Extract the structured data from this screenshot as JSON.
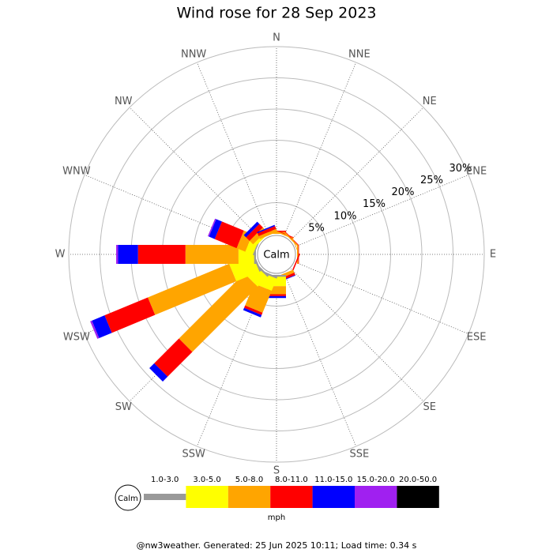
{
  "chart_data": {
    "type": "windrose",
    "title": "Wind rose for 28 Sep 2023",
    "categories": [
      "N",
      "NNE",
      "NE",
      "ENE",
      "E",
      "ESE",
      "SE",
      "SSE",
      "S",
      "SSW",
      "SW",
      "WSW",
      "W",
      "WNW",
      "NW",
      "NNW"
    ],
    "series": [
      {
        "name": "1.0-3.0",
        "color": "#999999",
        "values": [
          0,
          0,
          0,
          0,
          0,
          0,
          0,
          0,
          0.3,
          0.3,
          0.3,
          0.3,
          0.3,
          0.2,
          0,
          0
        ]
      },
      {
        "name": "3.0-5.0",
        "color": "#ffff00",
        "values": [
          0,
          0,
          0,
          0,
          0,
          0,
          0,
          0,
          1.5,
          2.1,
          2.2,
          4.0,
          2.5,
          1.3,
          0.5,
          0
        ]
      },
      {
        "name": "5.0-8.0",
        "color": "#ffa500",
        "values": [
          0.3,
          0.2,
          0.2,
          0.1,
          0.2,
          0,
          0,
          0.5,
          1.3,
          3.8,
          14.8,
          14.1,
          8.5,
          1.5,
          0.8,
          0.5
        ]
      },
      {
        "name": "8.0-11.0",
        "color": "#ff0000",
        "values": [
          0.2,
          0.1,
          0.1,
          0,
          0.1,
          0.2,
          0,
          0.4,
          0.3,
          0.4,
          5.6,
          7.5,
          7.6,
          3.8,
          0.8,
          0.5
        ]
      },
      {
        "name": "11.0-15.0",
        "color": "#0000ff",
        "values": [
          0,
          0,
          0,
          0,
          0,
          0,
          0,
          0.1,
          0.3,
          0.4,
          1.1,
          2.2,
          3.2,
          1.0,
          0.5,
          0.2
        ]
      },
      {
        "name": "15.0-20.0",
        "color": "#a020f0",
        "values": [
          0,
          0,
          0,
          0,
          0,
          0,
          0,
          0,
          0,
          0,
          0,
          0.3,
          0.3,
          0.2,
          0,
          0
        ]
      },
      {
        "name": "20.0-50.0",
        "color": "#000000",
        "values": [
          0,
          0,
          0,
          0,
          0,
          0,
          0,
          0,
          0,
          0,
          0,
          0,
          0,
          0,
          0,
          0
        ]
      }
    ],
    "ylim": [
      0,
      30
    ],
    "yticks": [
      {
        "value": 5,
        "label": "5%"
      },
      {
        "value": 10,
        "label": "10%"
      },
      {
        "value": 15,
        "label": "15%"
      },
      {
        "value": 20,
        "label": "20%"
      },
      {
        "value": 25,
        "label": "25%"
      },
      {
        "value": 30,
        "label": "30%"
      }
    ],
    "grid": true,
    "calm_label": "Calm",
    "legend_unit": "mph",
    "footer": "@nw3weather. Generated: 25 Jun 2025 10:11; Load time: 0.34 s"
  }
}
